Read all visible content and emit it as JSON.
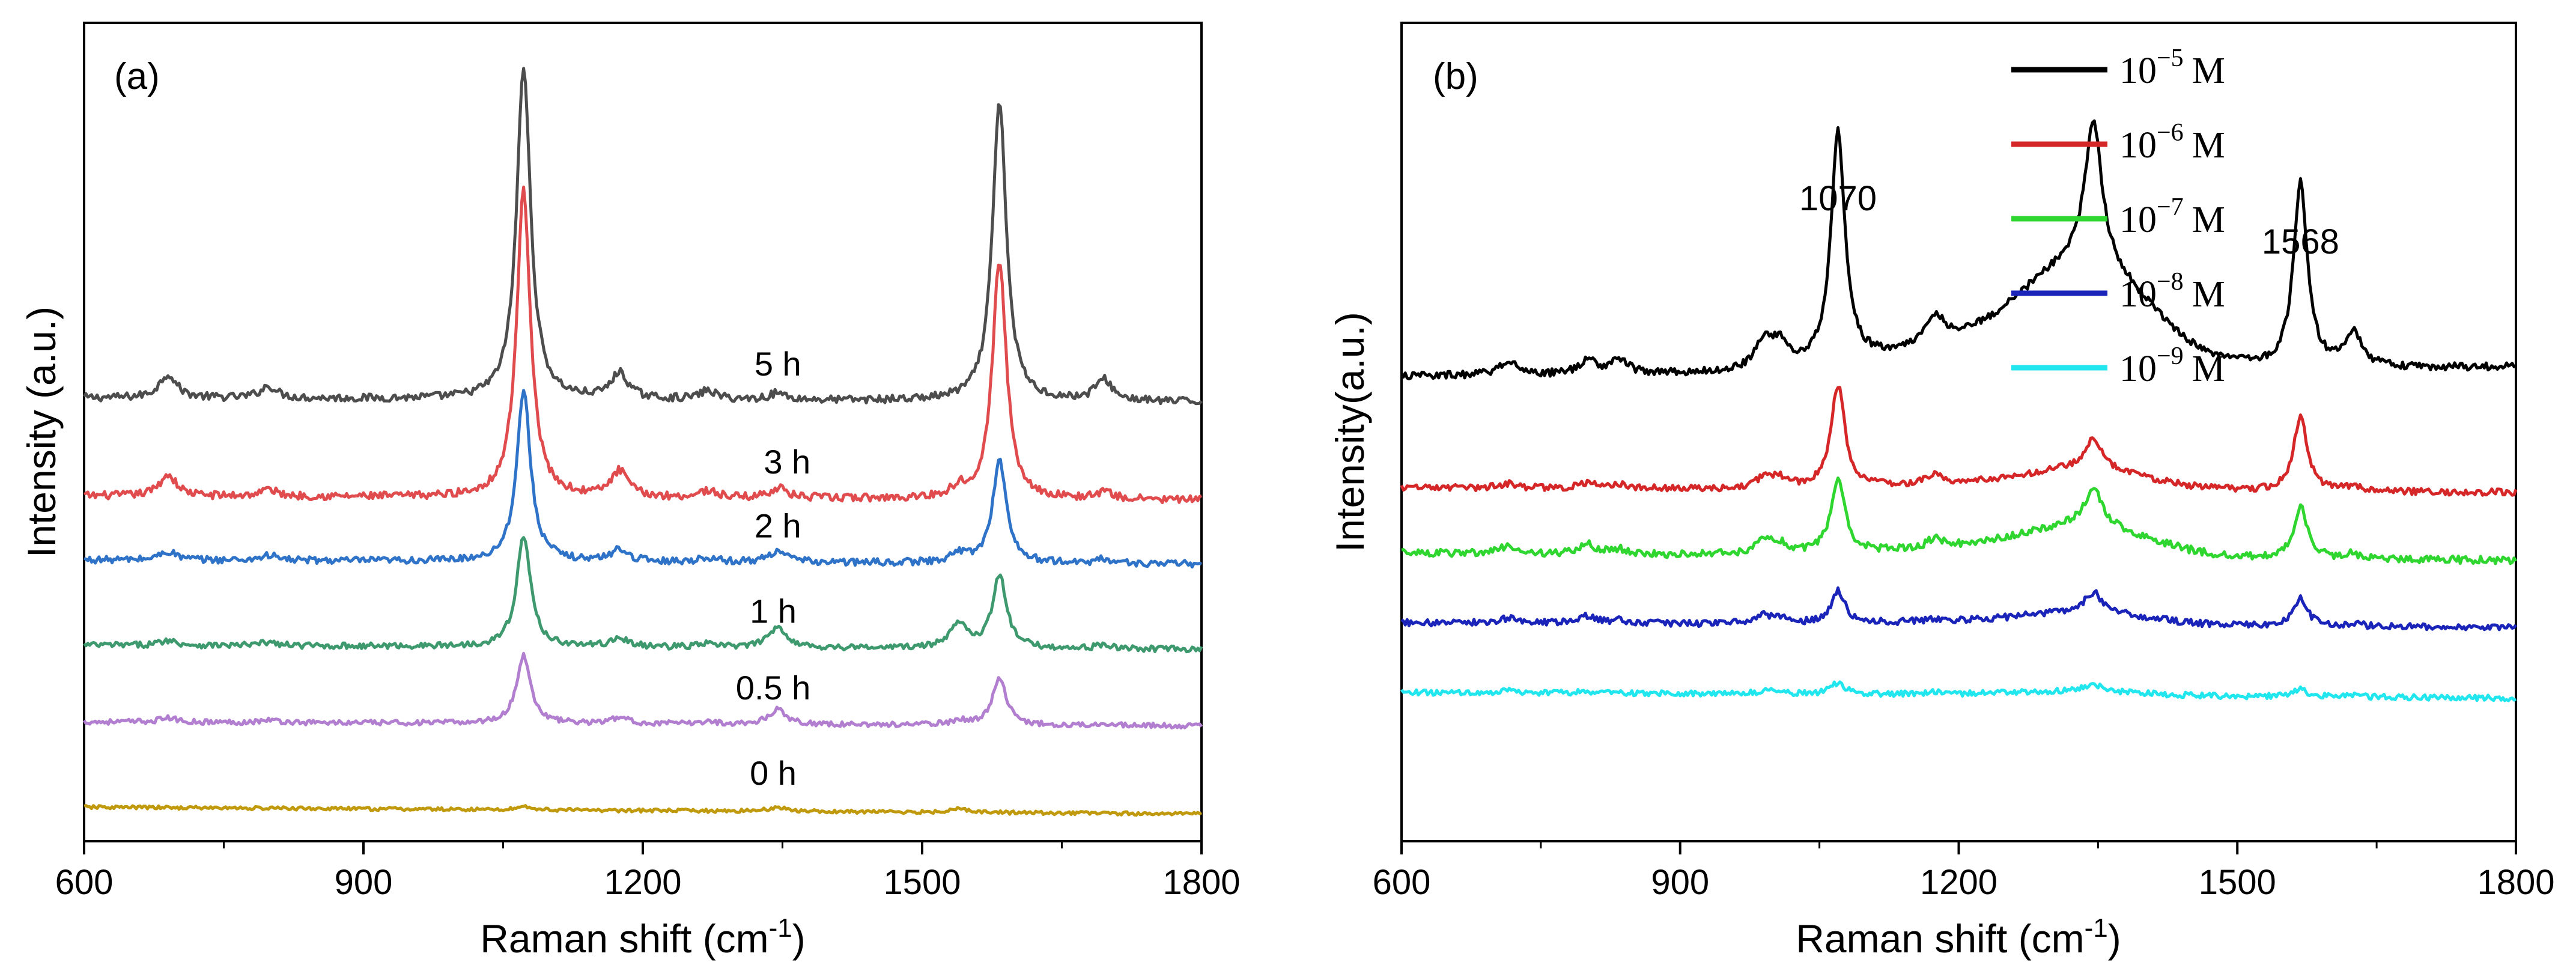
{
  "chart_data": [
    {
      "type": "line",
      "panel_label": "(a)",
      "xlabel": "Raman shift (cm",
      "xlabel_sup": "-1",
      "xlabel_close": ")",
      "ylabel": "Intensity (a.u.)",
      "xlim": [
        600,
        1800
      ],
      "xticks": [
        "600",
        "900",
        "1200",
        "1500",
        "1800"
      ],
      "peaks": [
        690,
        798,
        1072,
        1175,
        1270,
        1345,
        1540,
        1583,
        1695
      ],
      "series": [
        {
          "name": "5 h",
          "color": "#4d4d4d",
          "offset": 5.2,
          "amps": [
            0.28,
            0.14,
            3.9,
            0.3,
            0.1,
            0.08,
            0.0,
            3.5,
            0.25
          ],
          "noise": 0.045
        },
        {
          "name": "3 h",
          "color": "#e04b4e",
          "offset": 4.05,
          "amps": [
            0.25,
            0.08,
            3.6,
            0.3,
            0.08,
            0.12,
            0.1,
            2.8,
            0.08
          ],
          "noise": 0.045
        },
        {
          "name": "2 h",
          "color": "#2f73c9",
          "offset": 3.3,
          "amps": [
            0.1,
            0.06,
            2.0,
            0.14,
            0.05,
            0.14,
            0.1,
            1.2,
            0.05
          ],
          "noise": 0.04
        },
        {
          "name": "1 h",
          "color": "#3e9a6e",
          "offset": 2.3,
          "amps": [
            0.06,
            0.04,
            1.3,
            0.1,
            0.04,
            0.25,
            0.3,
            0.85,
            0.04
          ],
          "noise": 0.035
        },
        {
          "name": "0.5 h",
          "color": "#b27fd0",
          "offset": 1.4,
          "amps": [
            0.05,
            0.03,
            0.8,
            0.07,
            0.03,
            0.18,
            0.05,
            0.55,
            0.03
          ],
          "noise": 0.03
        },
        {
          "name": "0 h",
          "color": "#c09a0c",
          "offset": 0.4,
          "amps": [
            0.0,
            0.0,
            0.04,
            0.0,
            0.0,
            0.05,
            0.05,
            0.0,
            0.0
          ],
          "noise": 0.02
        }
      ],
      "series_label_x": [
        1345,
        1355,
        1345,
        1340,
        1340,
        1340
      ]
    },
    {
      "type": "line",
      "panel_label": "(b)",
      "xlabel": "Raman shift (cm",
      "xlabel_sup": "-1",
      "xlabel_close": ")",
      "ylabel": "Intensity(a.u.)",
      "xlim": [
        600,
        1800
      ],
      "xticks": [
        "600",
        "900",
        "1200",
        "1500",
        "1800"
      ],
      "peaks": [
        715,
        800,
        835,
        990,
        1007,
        1070,
        1175,
        1345,
        1568,
        1625
      ],
      "annotations": [
        {
          "text": "1070",
          "x": 1070
        },
        {
          "text": "1568",
          "x": 1568
        }
      ],
      "legend_position": "top-right",
      "series": [
        {
          "name": "10",
          "exp": "−5",
          "unit": "M",
          "color": "#000000",
          "offset": 3.6,
          "amps": [
            0.15,
            0.15,
            0.15,
            0.3,
            0.25,
            2.5,
            0.3,
            1.55,
            2.0,
            0.35
          ],
          "broad": 1.0,
          "noise": 0.04
        },
        {
          "name": "10",
          "exp": "−6",
          "unit": "M",
          "color": "#d62728",
          "offset": 2.4,
          "amps": [
            0.05,
            0.05,
            0.05,
            0.1,
            0.1,
            1.1,
            0.1,
            0.32,
            0.8,
            0.05
          ],
          "broad": 0.2,
          "noise": 0.035
        },
        {
          "name": "10",
          "exp": "−7",
          "unit": "M",
          "color": "#2fd62f",
          "offset": 1.7,
          "amps": [
            0.08,
            0.1,
            0.05,
            0.15,
            0.1,
            0.8,
            0.1,
            0.4,
            0.55,
            0.05
          ],
          "broad": 0.3,
          "noise": 0.04
        },
        {
          "name": "10",
          "exp": "−8",
          "unit": "M",
          "color": "#1a24b8",
          "offset": 0.95,
          "amps": [
            0.05,
            0.08,
            0.03,
            0.08,
            0.05,
            0.35,
            0.03,
            0.22,
            0.3,
            0.03
          ],
          "broad": 0.12,
          "noise": 0.035
        },
        {
          "name": "10",
          "exp": "−9",
          "unit": "M",
          "color": "#22e6ee",
          "offset": 0.2,
          "amps": [
            0.03,
            0.02,
            0.01,
            0.03,
            0.02,
            0.12,
            0.02,
            0.08,
            0.08,
            0.02
          ],
          "broad": 0.04,
          "noise": 0.03
        }
      ]
    }
  ]
}
